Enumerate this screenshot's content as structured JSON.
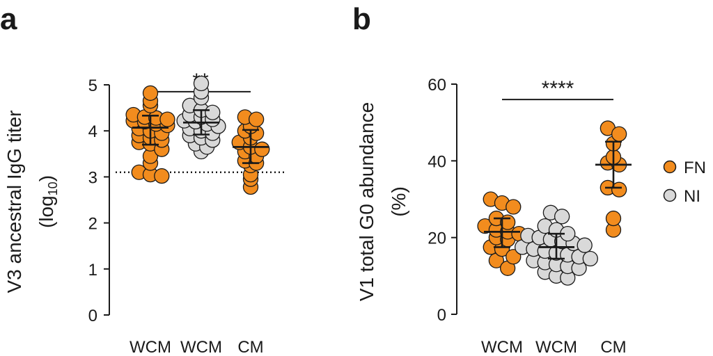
{
  "panels": {
    "a": {
      "letter": "a"
    },
    "b": {
      "letter": "b"
    }
  },
  "legend": [
    {
      "label": "FN",
      "color": "#f28c1e"
    },
    {
      "label": "NI",
      "color": "#d9d9d9"
    }
  ],
  "colors": {
    "FN": "#f28c1e",
    "NI": "#d9d9d9",
    "stroke": "#1a1a1a"
  },
  "chart_data": [
    {
      "type": "scatter",
      "panel": "a",
      "ylabel_line1": "V3 ancestral IgG titer",
      "ylabel_line2_prefix": "(log",
      "ylabel_line2_sub": "10",
      "ylabel_line2_suffix": ")",
      "ylim": [
        0,
        5
      ],
      "yticks": [
        0,
        1,
        2,
        3,
        4,
        5
      ],
      "threshold": 3.1,
      "categories": [
        "WCM",
        "WCM",
        "CM"
      ],
      "significance": {
        "from": 0,
        "to": 2,
        "label": "**",
        "y": 4.85
      },
      "groups": [
        {
          "category": "WCM",
          "series": "FN",
          "mean": 4.07,
          "sd_low": 3.7,
          "sd_high": 4.33,
          "values": [
            4.82,
            4.65,
            4.55,
            4.35,
            4.3,
            4.28,
            4.25,
            4.22,
            4.2,
            4.15,
            4.12,
            4.05,
            4.0,
            3.95,
            3.9,
            3.85,
            3.8,
            3.75,
            3.72,
            3.6,
            3.45,
            3.3,
            3.1,
            3.05,
            3.02
          ]
        },
        {
          "category": "WCM",
          "series": "NI",
          "mean": 4.18,
          "sd_low": 3.92,
          "sd_high": 4.45,
          "values": [
            5.03,
            4.85,
            4.72,
            4.55,
            4.45,
            4.4,
            4.35,
            4.3,
            4.25,
            4.22,
            4.2,
            4.15,
            4.1,
            4.05,
            4.0,
            3.95,
            3.9,
            3.85,
            3.8,
            3.72,
            3.65,
            3.55
          ]
        },
        {
          "category": "CM",
          "series": "FN",
          "mean": 3.65,
          "sd_low": 3.3,
          "sd_high": 4.02,
          "values": [
            4.3,
            4.25,
            4.1,
            4.0,
            3.95,
            3.85,
            3.75,
            3.65,
            3.6,
            3.55,
            3.45,
            3.35,
            3.3,
            3.25,
            3.05,
            2.95,
            2.78
          ]
        }
      ]
    },
    {
      "type": "scatter",
      "panel": "b",
      "ylabel_line1": "V1 total G0 abundance",
      "ylabel_line2": "(%)",
      "ylim": [
        0,
        60
      ],
      "yticks": [
        0,
        20,
        40,
        60
      ],
      "categories": [
        "WCM",
        "WCM",
        "CM"
      ],
      "significance": {
        "from": 0,
        "to": 2,
        "label": "****",
        "y": 56
      },
      "groups": [
        {
          "category": "WCM",
          "series": "FN",
          "mean": 21.5,
          "sd_low": 17.5,
          "sd_high": 25.0,
          "values": [
            30.0,
            29.0,
            28.0,
            25.0,
            24.0,
            23.0,
            22.0,
            21.5,
            21.0,
            20.0,
            19.5,
            17.5,
            17.0,
            15.0,
            14.0,
            12.0
          ]
        },
        {
          "category": "WCM",
          "series": "NI",
          "mean": 17.5,
          "sd_low": 14.5,
          "sd_high": 21.0,
          "values": [
            26.5,
            25.5,
            23.0,
            22.0,
            21.0,
            20.5,
            20.0,
            19.5,
            19.0,
            18.5,
            18.0,
            17.5,
            17.0,
            16.5,
            16.0,
            15.5,
            15.0,
            14.5,
            14.0,
            13.5,
            13.0,
            12.5,
            12.0,
            11.0,
            10.0,
            9.5
          ]
        },
        {
          "category": "CM",
          "series": "FN",
          "mean": 39.0,
          "sd_low": 33.0,
          "sd_high": 45.0,
          "values": [
            48.5,
            47.0,
            44.5,
            41.0,
            39.5,
            39.0,
            33.0,
            32.5,
            25.0,
            22.0
          ]
        }
      ]
    }
  ]
}
